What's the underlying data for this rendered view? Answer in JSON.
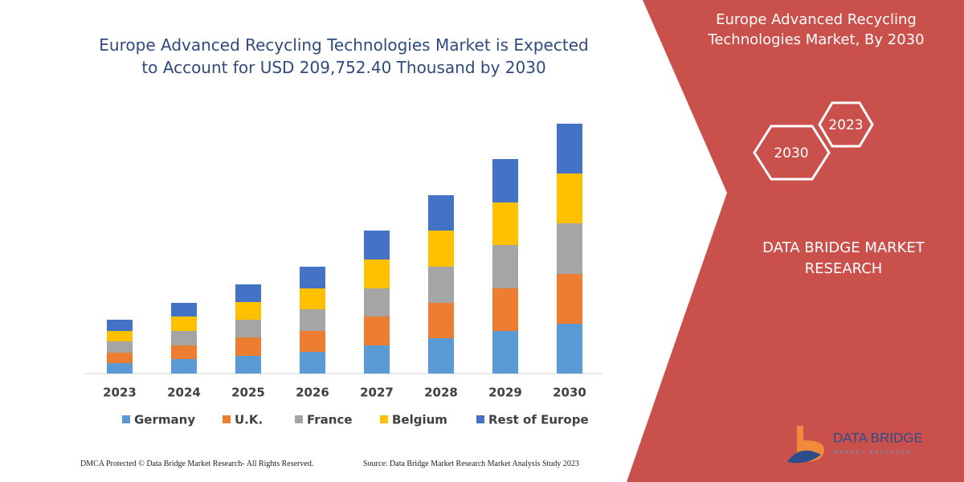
{
  "chart_data": {
    "type": "stacked_bar",
    "title": "Europe Advanced Recycling Technologies Market is Expected to Account for USD 209,752.40 Thousand by 2030",
    "categories": [
      "2023",
      "2024",
      "2025",
      "2026",
      "2027",
      "2028",
      "2029",
      "2030"
    ],
    "series": [
      {
        "name": "Germany",
        "color": "#5b9bd5",
        "values": [
          13,
          18,
          22,
          27,
          35,
          44,
          53,
          62
        ]
      },
      {
        "name": "U.K.",
        "color": "#ed7d31",
        "values": [
          13,
          17,
          23,
          26,
          36,
          44,
          53,
          62
        ]
      },
      {
        "name": "France",
        "color": "#a5a5a5",
        "values": [
          14,
          18,
          22,
          27,
          35,
          45,
          54,
          63
        ]
      },
      {
        "name": "Belgium",
        "color": "#ffc000",
        "values": [
          13,
          18,
          22,
          26,
          36,
          45,
          53,
          62
        ]
      },
      {
        "name": "Rest of Europe",
        "color": "#4472c4",
        "values": [
          14,
          17,
          22,
          27,
          36,
          44,
          54,
          62
        ]
      }
    ]
  },
  "panel": {
    "title": "Europe Advanced Recycling Technologies Market, By 2030",
    "hexagons": [
      "2023",
      "2030"
    ],
    "brand": "DATA BRIDGE MARKET RESEARCH"
  },
  "logo": {
    "name": "DATA BRIDGE",
    "tagline": "MARKET RESEARCH"
  },
  "footer": {
    "left": "DMCA Protected © Data Bridge Market Research-  All Rights Reserved.",
    "right": "Source: Data Bridge Market Research  Market Analysis Study 2023"
  }
}
